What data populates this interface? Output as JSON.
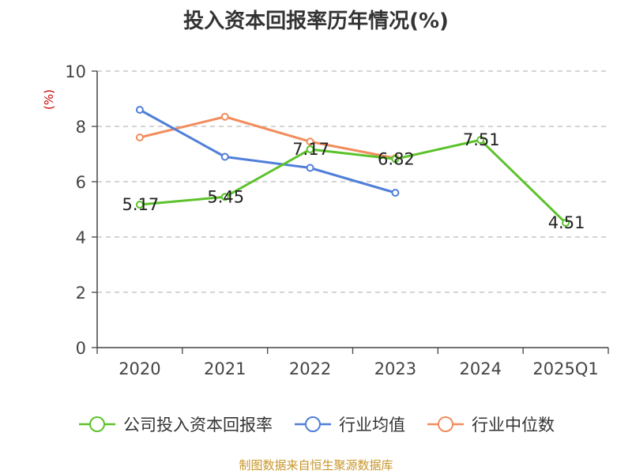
{
  "title": "投入资本回报率历年情况(%)",
  "source": "制图数据来自恒生聚源数据库",
  "chart_data": {
    "type": "line",
    "title": "投入资本回报率历年情况(%)",
    "xlabel": "",
    "ylabel": "(%)",
    "ylim": [
      0,
      10
    ],
    "yticks": [
      "0",
      "2",
      "4",
      "6",
      "8",
      "10"
    ],
    "categories": [
      "2020",
      "2021",
      "2022",
      "2023",
      "2024",
      "2025Q1"
    ],
    "grid": true,
    "legend_position": "bottom",
    "series": [
      {
        "name": "公司投入资本回报率",
        "color": "#5cc22b",
        "values": [
          5.17,
          5.45,
          7.17,
          6.82,
          7.51,
          4.51
        ],
        "labels": [
          "5.17",
          "5.45",
          "7.17",
          "6.82",
          "7.51",
          "4.51"
        ]
      },
      {
        "name": "行业均值",
        "color": "#4f7fd9",
        "values": [
          8.6,
          6.9,
          6.5,
          5.6,
          null,
          null
        ]
      },
      {
        "name": "行业中位数",
        "color": "#f28c5c",
        "values": [
          7.6,
          8.35,
          7.45,
          6.85,
          null,
          null
        ]
      }
    ]
  }
}
